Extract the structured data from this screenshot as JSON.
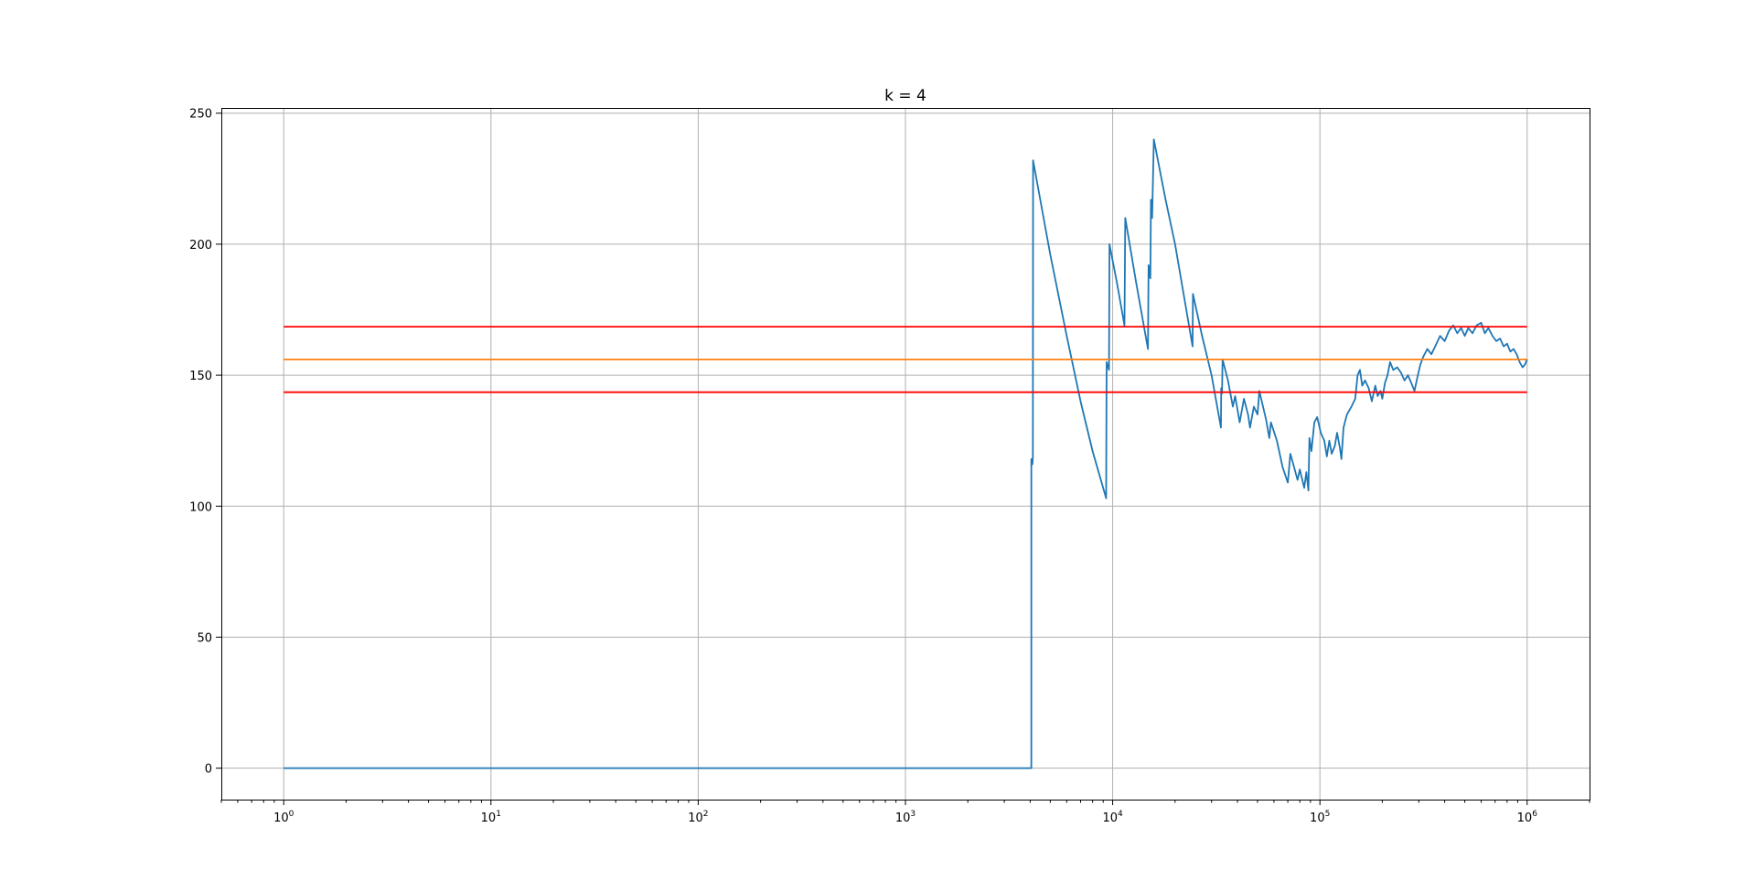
{
  "chart_data": {
    "type": "line",
    "title": "k = 4",
    "xlabel": "",
    "ylabel": "",
    "xscale": "log",
    "xlim": [
      0.5,
      2000000
    ],
    "ylim": [
      -12,
      252
    ],
    "grid": true,
    "x_ticks": [
      {
        "base": "10",
        "exp": "0",
        "value": 1
      },
      {
        "base": "10",
        "exp": "1",
        "value": 10
      },
      {
        "base": "10",
        "exp": "2",
        "value": 100
      },
      {
        "base": "10",
        "exp": "3",
        "value": 1000
      },
      {
        "base": "10",
        "exp": "4",
        "value": 10000
      },
      {
        "base": "10",
        "exp": "5",
        "value": 100000
      },
      {
        "base": "10",
        "exp": "6",
        "value": 1000000
      }
    ],
    "y_ticks": [
      {
        "label": "0",
        "value": 0
      },
      {
        "label": "50",
        "value": 50
      },
      {
        "label": "100",
        "value": 100
      },
      {
        "label": "150",
        "value": 150
      },
      {
        "label": "200",
        "value": 200
      },
      {
        "label": "250",
        "value": 250
      }
    ],
    "hlines": [
      {
        "y": 168.5,
        "color": "#ff0000",
        "x": [
          1,
          1000000
        ]
      },
      {
        "y": 156,
        "color": "#ff7f0e",
        "x": [
          1,
          1000000
        ]
      },
      {
        "y": 143.5,
        "color": "#ff0000",
        "x": [
          1,
          1000000
        ]
      }
    ],
    "series": [
      {
        "color": "#1f77b4",
        "points": [
          [
            1,
            0
          ],
          [
            4050,
            0
          ],
          [
            4050,
            118
          ],
          [
            4100,
            116
          ],
          [
            4120,
            119
          ],
          [
            4130,
            232
          ],
          [
            5000,
            196
          ],
          [
            6000,
            165
          ],
          [
            7000,
            140
          ],
          [
            8000,
            121
          ],
          [
            9300,
            103
          ],
          [
            9350,
            155
          ],
          [
            9600,
            152
          ],
          [
            9650,
            200
          ],
          [
            10500,
            185
          ],
          [
            11400,
            169
          ],
          [
            11500,
            210
          ],
          [
            13000,
            185
          ],
          [
            14800,
            160
          ],
          [
            14900,
            192
          ],
          [
            15200,
            187
          ],
          [
            15300,
            217
          ],
          [
            15500,
            210
          ],
          [
            15800,
            240
          ],
          [
            18000,
            217
          ],
          [
            20000,
            200
          ],
          [
            23000,
            172
          ],
          [
            24300,
            161
          ],
          [
            24400,
            181
          ],
          [
            27000,
            165
          ],
          [
            30000,
            150
          ],
          [
            33300,
            130
          ],
          [
            33400,
            145
          ],
          [
            33700,
            143
          ],
          [
            33900,
            156
          ],
          [
            36000,
            148
          ],
          [
            38000,
            138
          ],
          [
            39000,
            142
          ],
          [
            41000,
            132
          ],
          [
            43000,
            141
          ],
          [
            45000,
            135
          ],
          [
            46000,
            130
          ],
          [
            48000,
            138
          ],
          [
            50000,
            135
          ],
          [
            51000,
            144
          ],
          [
            55000,
            133
          ],
          [
            57000,
            126
          ],
          [
            58000,
            132
          ],
          [
            62000,
            125
          ],
          [
            66000,
            115
          ],
          [
            70000,
            109
          ],
          [
            72000,
            120
          ],
          [
            75000,
            115
          ],
          [
            78000,
            110
          ],
          [
            80000,
            114
          ],
          [
            84000,
            107
          ],
          [
            86000,
            113
          ],
          [
            88000,
            106
          ],
          [
            89000,
            126
          ],
          [
            91000,
            121
          ],
          [
            94000,
            132
          ],
          [
            97000,
            134
          ],
          [
            101000,
            128
          ],
          [
            105000,
            125
          ],
          [
            108000,
            119
          ],
          [
            111000,
            125
          ],
          [
            114000,
            120
          ],
          [
            118000,
            123
          ],
          [
            121000,
            128
          ],
          [
            125000,
            122
          ],
          [
            127000,
            118
          ],
          [
            130000,
            130
          ],
          [
            135000,
            135
          ],
          [
            142000,
            138
          ],
          [
            148000,
            141
          ],
          [
            152000,
            150
          ],
          [
            156000,
            152
          ],
          [
            160000,
            146
          ],
          [
            165000,
            148
          ],
          [
            172000,
            145
          ],
          [
            178000,
            140
          ],
          [
            185000,
            146
          ],
          [
            190000,
            142
          ],
          [
            196000,
            144
          ],
          [
            200000,
            141
          ],
          [
            206000,
            147
          ],
          [
            212000,
            150
          ],
          [
            218000,
            155
          ],
          [
            226000,
            152
          ],
          [
            236000,
            153
          ],
          [
            246000,
            151
          ],
          [
            256000,
            148
          ],
          [
            266000,
            150
          ],
          [
            276000,
            147
          ],
          [
            286000,
            144
          ],
          [
            295000,
            149
          ],
          [
            305000,
            154
          ],
          [
            315000,
            157
          ],
          [
            330000,
            160
          ],
          [
            345000,
            158
          ],
          [
            360000,
            161
          ],
          [
            380000,
            165
          ],
          [
            400000,
            163
          ],
          [
            420000,
            167
          ],
          [
            440000,
            169
          ],
          [
            460000,
            166
          ],
          [
            480000,
            168
          ],
          [
            500000,
            165
          ],
          [
            520000,
            168
          ],
          [
            545000,
            166
          ],
          [
            570000,
            169
          ],
          [
            600000,
            170
          ],
          [
            625000,
            166
          ],
          [
            650000,
            168
          ],
          [
            680000,
            165
          ],
          [
            710000,
            163
          ],
          [
            740000,
            164
          ],
          [
            770000,
            161
          ],
          [
            800000,
            162
          ],
          [
            830000,
            159
          ],
          [
            860000,
            160
          ],
          [
            890000,
            158
          ],
          [
            920000,
            155
          ],
          [
            950000,
            153
          ],
          [
            975000,
            154
          ],
          [
            1000000,
            156
          ]
        ]
      }
    ]
  }
}
